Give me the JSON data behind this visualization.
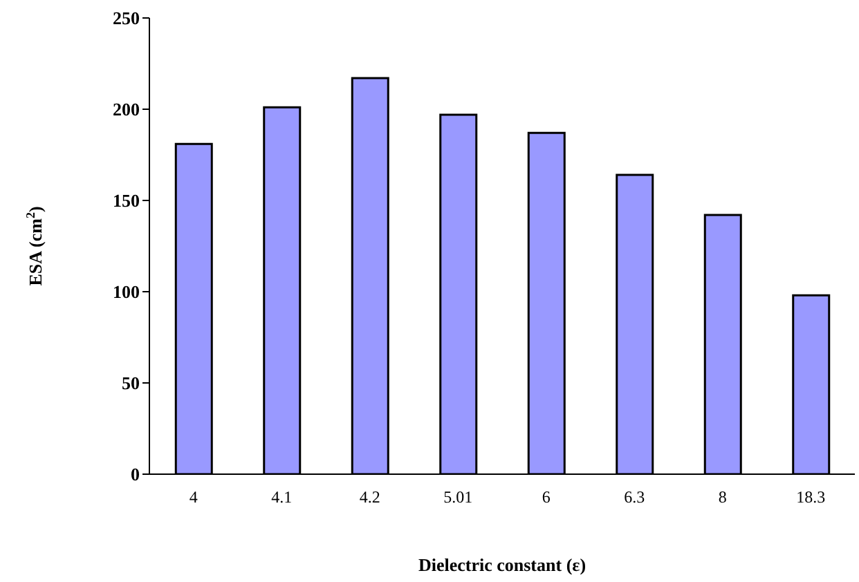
{
  "chart_data": {
    "type": "bar",
    "xlabel": "Dielectric constant (ε)",
    "ylabel": "ESA (cm$^{2}$)",
    "categories": [
      "4",
      "4.1",
      "4.2",
      "5.01",
      "6",
      "6.3",
      "8",
      "18.3"
    ],
    "values": [
      181,
      201,
      217,
      197,
      187,
      164,
      142,
      98
    ],
    "color": "#9999ff",
    "ylim": [
      0,
      250
    ],
    "yticks": [
      0,
      50,
      100,
      150,
      200,
      250
    ],
    "grid": false
  }
}
